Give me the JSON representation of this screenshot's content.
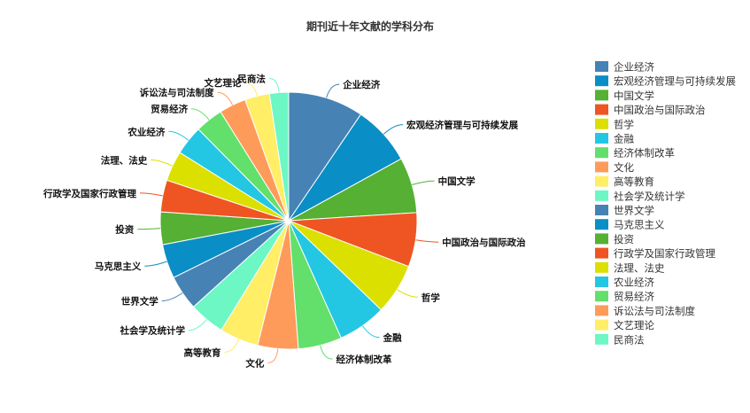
{
  "chart_data": {
    "type": "pie",
    "title": "期刊近十年文献的学科分布",
    "legend_position": "right",
    "slices": [
      {
        "label": "企业经济",
        "value": 9.5,
        "color": "#4682b4"
      },
      {
        "label": "宏观经济管理与可持续发展",
        "value": 7.5,
        "color": "#0a8ec6"
      },
      {
        "label": "中国文学",
        "value": 7.0,
        "color": "#55b033"
      },
      {
        "label": "中国政治与国际政治",
        "value": 6.8,
        "color": "#ee5522"
      },
      {
        "label": "哲学",
        "value": 6.4,
        "color": "#dbe000"
      },
      {
        "label": "金融",
        "value": 6.1,
        "color": "#23c7e3"
      },
      {
        "label": "经济体制改革",
        "value": 5.5,
        "color": "#63df6b"
      },
      {
        "label": "文化",
        "value": 5.1,
        "color": "#ff9b5a"
      },
      {
        "label": "高等教育",
        "value": 4.9,
        "color": "#ffee66"
      },
      {
        "label": "社会学及统计学",
        "value": 4.5,
        "color": "#6cf7c5"
      },
      {
        "label": "世界文学",
        "value": 4.4,
        "color": "#4682b4"
      },
      {
        "label": "马克思主义",
        "value": 4.3,
        "color": "#0a8ec6"
      },
      {
        "label": "投资",
        "value": 4.1,
        "color": "#55b033"
      },
      {
        "label": "行政学及国家行政管理",
        "value": 4.0,
        "color": "#ee5522"
      },
      {
        "label": "法理、法史",
        "value": 3.8,
        "color": "#dbe000"
      },
      {
        "label": "农业经济",
        "value": 3.7,
        "color": "#23c7e3"
      },
      {
        "label": "贸易经济",
        "value": 3.5,
        "color": "#63df6b"
      },
      {
        "label": "诉讼法与司法制度",
        "value": 3.4,
        "color": "#ff9b5a"
      },
      {
        "label": "文艺理论",
        "value": 3.1,
        "color": "#ffee66"
      },
      {
        "label": "民商法",
        "value": 2.4,
        "color": "#6cf7c5"
      }
    ]
  }
}
